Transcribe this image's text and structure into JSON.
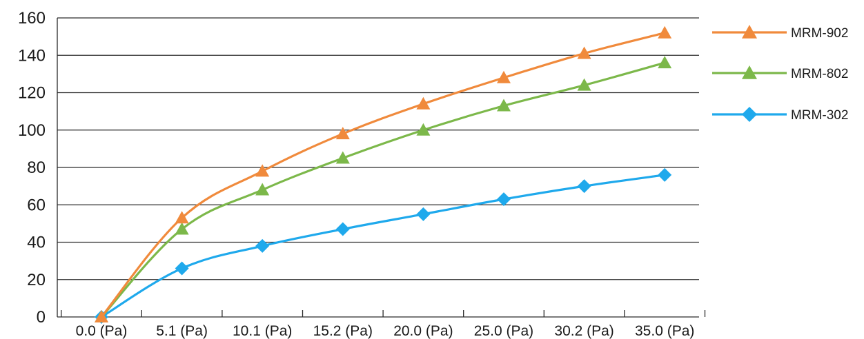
{
  "chart_data": {
    "type": "line",
    "categories": [
      "0.0 (Pa)",
      "5.1 (Pa)",
      "10.1 (Pa)",
      "15.2 (Pa)",
      "20.0 (Pa)",
      "25.0 (Pa)",
      "30.2 (Pa)",
      "35.0 (Pa)"
    ],
    "ylim": [
      0,
      160
    ],
    "yticks": [
      "0",
      "20",
      "40",
      "60",
      "80",
      "100",
      "120",
      "140",
      "160"
    ],
    "grid": true,
    "legend_position": "right",
    "series": [
      {
        "name": "MRM-902",
        "color": "#f08a3c",
        "marker": "triangle",
        "values": [
          0,
          53,
          78,
          98,
          114,
          128,
          141,
          152
        ]
      },
      {
        "name": "MRM-802",
        "color": "#7cb84a",
        "marker": "triangle",
        "values": [
          0,
          47,
          68,
          85,
          100,
          113,
          124,
          136
        ]
      },
      {
        "name": "MRM-302",
        "color": "#1fa9ec",
        "marker": "diamond",
        "values": [
          0,
          26,
          38,
          47,
          55,
          63,
          70,
          76
        ]
      }
    ]
  }
}
